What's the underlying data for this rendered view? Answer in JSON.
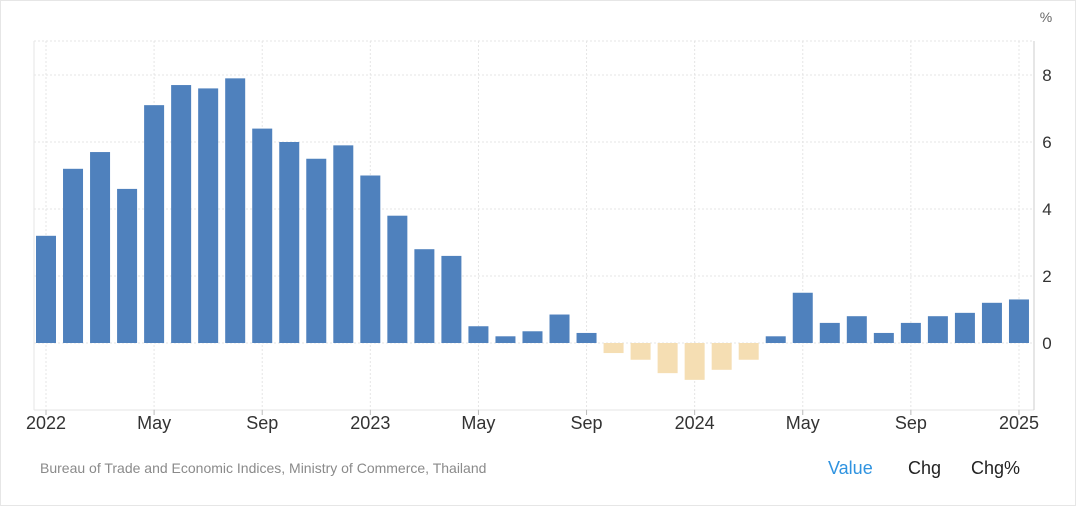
{
  "source": "Bureau of Trade and Economic Indices, Ministry of Commerce, Thailand",
  "view_tabs": [
    "Value",
    "Chg",
    "Chg%"
  ],
  "active_tab": "Value",
  "colors": {
    "positive": "#4f81bd",
    "negative": "#f5deb3",
    "grid": "#e5e5e5"
  },
  "chart_data": {
    "type": "bar",
    "unit": "%",
    "ylim": [
      -2,
      9
    ],
    "yticks": [
      0,
      2,
      4,
      6,
      8
    ],
    "xticks": [
      {
        "label": "2022",
        "index": 0
      },
      {
        "label": "May",
        "index": 4
      },
      {
        "label": "Sep",
        "index": 8
      },
      {
        "label": "2023",
        "index": 12
      },
      {
        "label": "May",
        "index": 16
      },
      {
        "label": "Sep",
        "index": 20
      },
      {
        "label": "2024",
        "index": 24
      },
      {
        "label": "May",
        "index": 28
      },
      {
        "label": "Sep",
        "index": 32
      },
      {
        "label": "2025",
        "index": 36
      }
    ],
    "categories": [
      "2022-01",
      "2022-02",
      "2022-03",
      "2022-04",
      "2022-05",
      "2022-06",
      "2022-07",
      "2022-08",
      "2022-09",
      "2022-10",
      "2022-11",
      "2022-12",
      "2023-01",
      "2023-02",
      "2023-03",
      "2023-04",
      "2023-05",
      "2023-06",
      "2023-07",
      "2023-08",
      "2023-09",
      "2023-10",
      "2023-11",
      "2023-12",
      "2024-01",
      "2024-02",
      "2024-03",
      "2024-04",
      "2024-05",
      "2024-06",
      "2024-07",
      "2024-08",
      "2024-09",
      "2024-10",
      "2024-11",
      "2024-12",
      "2025-01"
    ],
    "values": [
      3.2,
      5.2,
      5.7,
      4.6,
      7.1,
      7.7,
      7.6,
      7.9,
      6.4,
      6.0,
      5.5,
      5.9,
      5.0,
      3.8,
      2.8,
      2.6,
      0.5,
      0.2,
      0.35,
      0.85,
      0.3,
      -0.3,
      -0.5,
      -0.9,
      -1.1,
      -0.8,
      -0.5,
      0.2,
      1.5,
      0.6,
      0.8,
      0.3,
      0.6,
      0.8,
      0.9,
      1.2,
      1.3
    ]
  }
}
